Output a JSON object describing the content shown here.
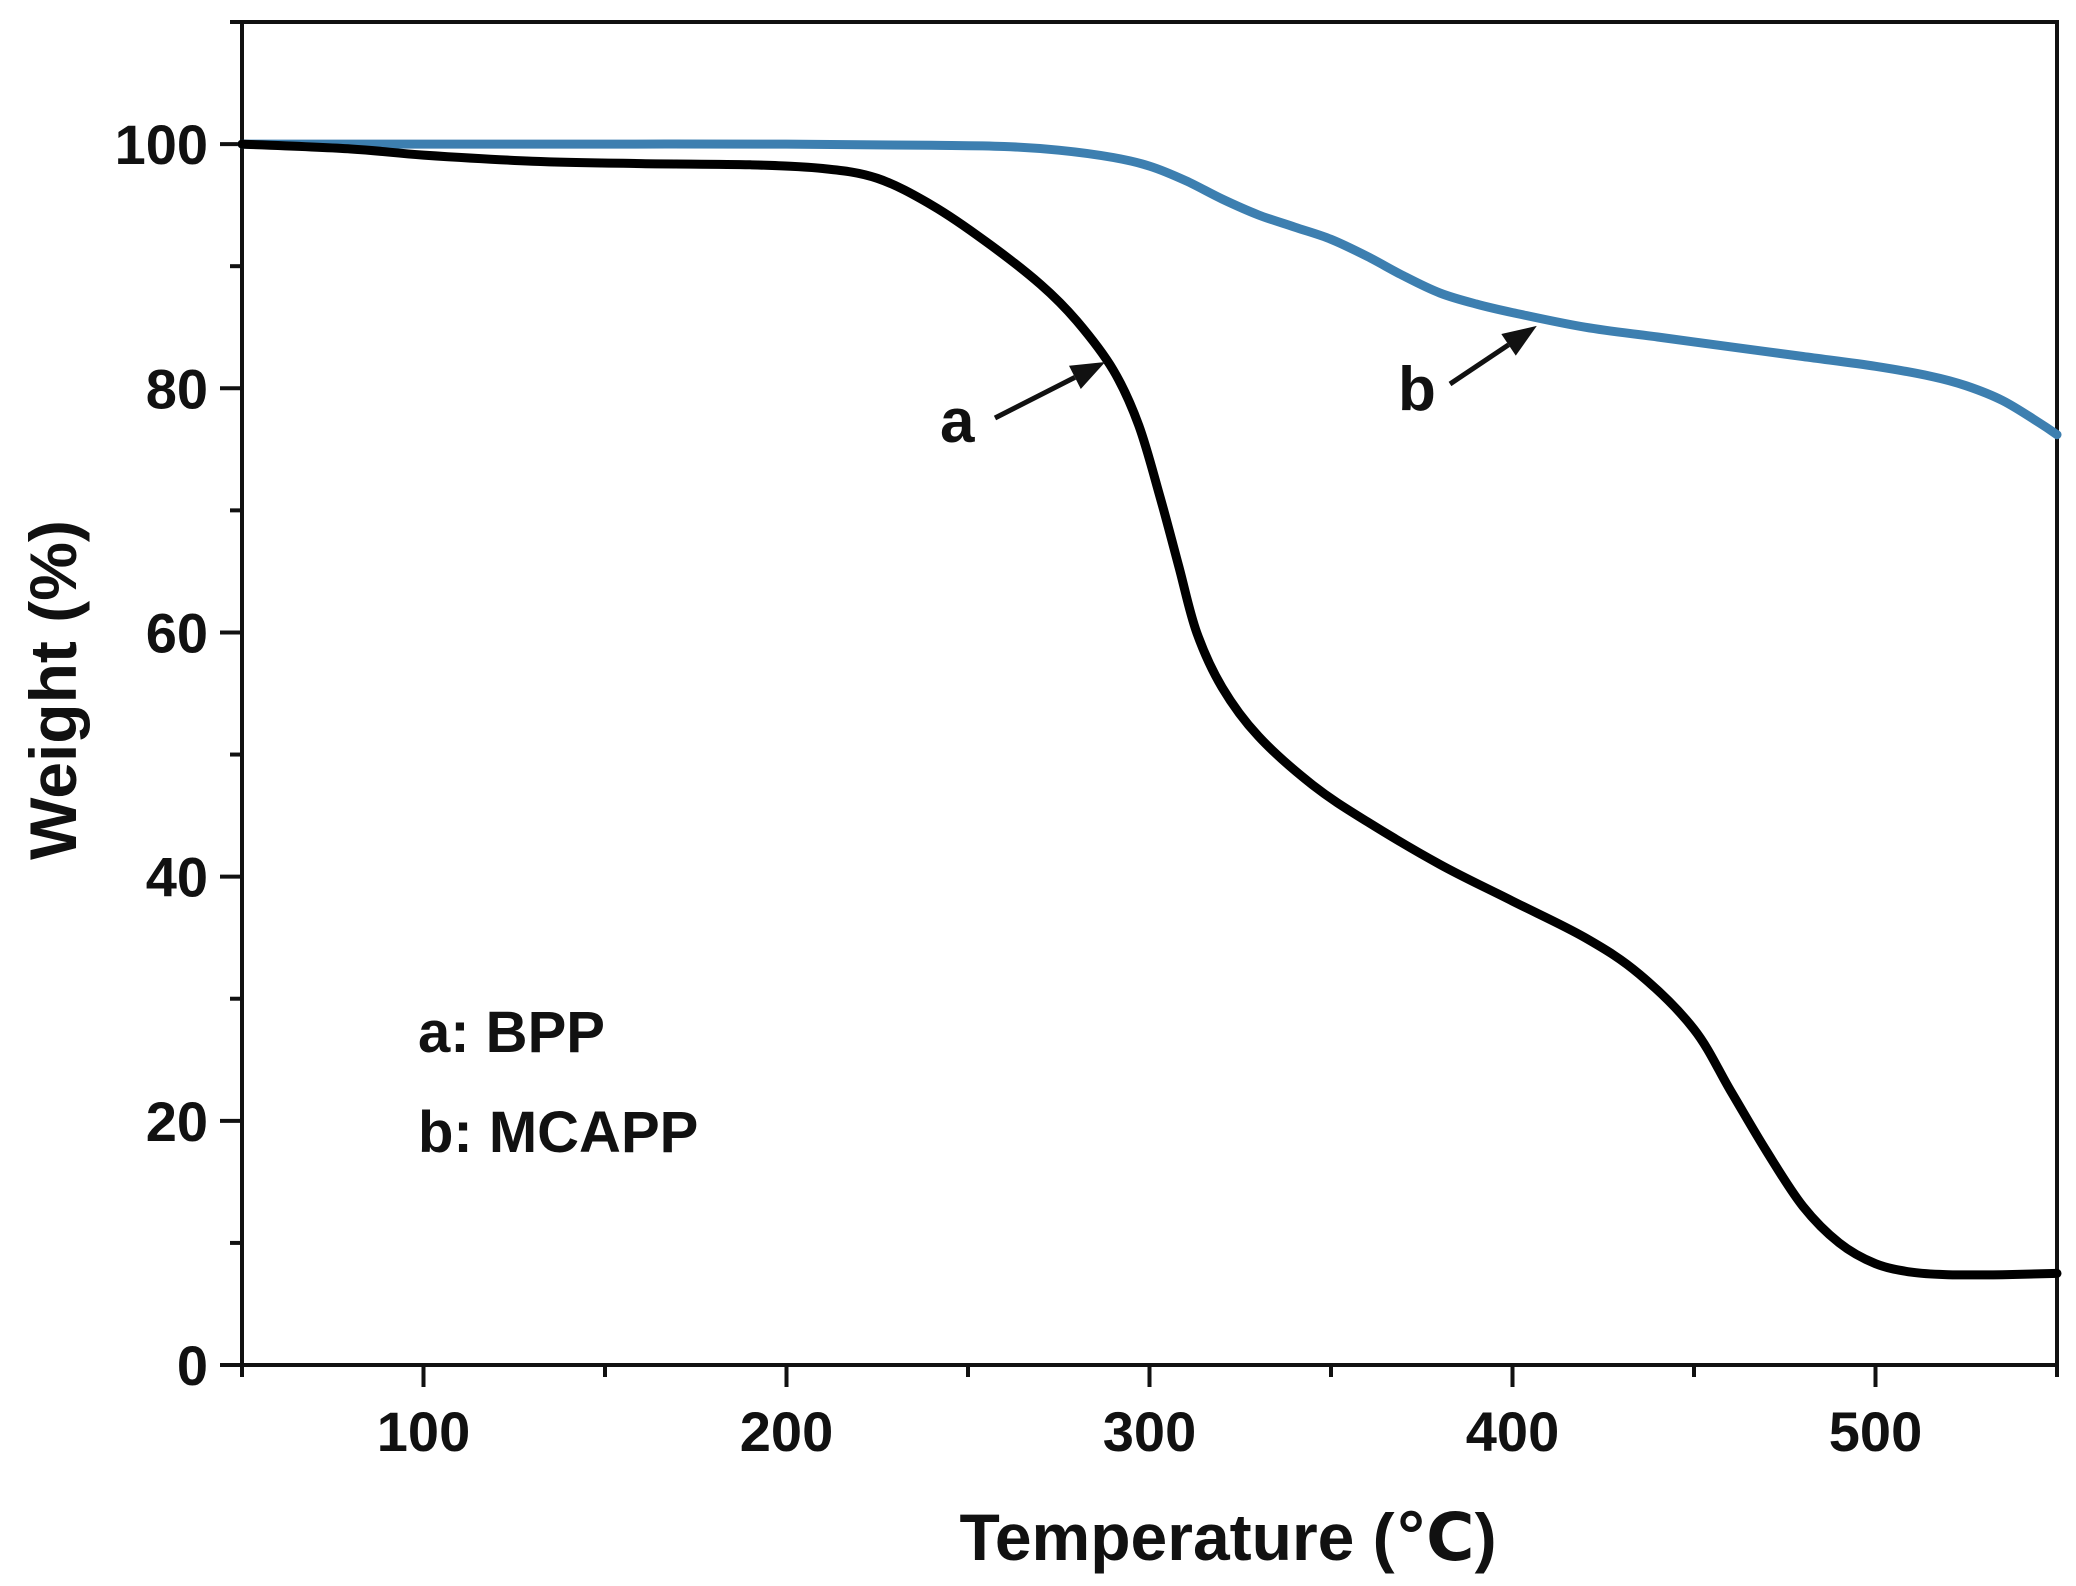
{
  "chart_data": {
    "type": "line",
    "title": "",
    "xlabel": "Temperature (℃)",
    "ylabel": "Weight (%)",
    "xlim": [
      50,
      550
    ],
    "ylim": [
      0,
      110
    ],
    "xticks": [
      100,
      200,
      300,
      400,
      500
    ],
    "yticks": [
      0,
      20,
      40,
      60,
      80,
      100
    ],
    "x_minor_step": 50,
    "y_minor_step": 10,
    "grid": false,
    "legend": {
      "placement": "bottom-left",
      "entries": [
        "a: BPP",
        "b: MCAPP"
      ]
    },
    "series": [
      {
        "name": "a: BPP",
        "label": "a",
        "color": "#000000",
        "points": [
          [
            50,
            100
          ],
          [
            80,
            99.6
          ],
          [
            100,
            99.1
          ],
          [
            130,
            98.6
          ],
          [
            160,
            98.4
          ],
          [
            190,
            98.3
          ],
          [
            210,
            98.0
          ],
          [
            225,
            97.2
          ],
          [
            240,
            95.0
          ],
          [
            255,
            92.0
          ],
          [
            270,
            88.5
          ],
          [
            280,
            85.5
          ],
          [
            290,
            81.5
          ],
          [
            297,
            77.0
          ],
          [
            303,
            71.0
          ],
          [
            308,
            65.5
          ],
          [
            313,
            60.0
          ],
          [
            320,
            55.5
          ],
          [
            330,
            51.5
          ],
          [
            345,
            47.5
          ],
          [
            360,
            44.5
          ],
          [
            380,
            41.0
          ],
          [
            400,
            38.0
          ],
          [
            420,
            35.0
          ],
          [
            435,
            32.0
          ],
          [
            450,
            27.5
          ],
          [
            460,
            22.5
          ],
          [
            470,
            17.5
          ],
          [
            480,
            13.0
          ],
          [
            490,
            10.0
          ],
          [
            500,
            8.3
          ],
          [
            510,
            7.6
          ],
          [
            520,
            7.4
          ],
          [
            535,
            7.4
          ],
          [
            550,
            7.5
          ]
        ],
        "annotation": {
          "text": "a",
          "arrow_to": [
            290,
            81.5
          ]
        }
      },
      {
        "name": "b: MCAPP",
        "label": "b",
        "color": "#3d7fb0",
        "points": [
          [
            50,
            100
          ],
          [
            100,
            100
          ],
          [
            150,
            100
          ],
          [
            200,
            100
          ],
          [
            240,
            99.9
          ],
          [
            260,
            99.8
          ],
          [
            275,
            99.5
          ],
          [
            290,
            98.9
          ],
          [
            300,
            98.2
          ],
          [
            310,
            97.0
          ],
          [
            320,
            95.5
          ],
          [
            330,
            94.2
          ],
          [
            340,
            93.2
          ],
          [
            350,
            92.2
          ],
          [
            360,
            90.8
          ],
          [
            370,
            89.2
          ],
          [
            380,
            87.8
          ],
          [
            390,
            86.9
          ],
          [
            400,
            86.2
          ],
          [
            420,
            85.0
          ],
          [
            440,
            84.2
          ],
          [
            460,
            83.4
          ],
          [
            480,
            82.6
          ],
          [
            500,
            81.8
          ],
          [
            515,
            81.0
          ],
          [
            525,
            80.2
          ],
          [
            535,
            79.0
          ],
          [
            545,
            77.2
          ],
          [
            550,
            76.2
          ]
        ],
        "annotation": {
          "text": "b",
          "arrow_to": [
            410,
            85.6
          ]
        }
      }
    ]
  }
}
